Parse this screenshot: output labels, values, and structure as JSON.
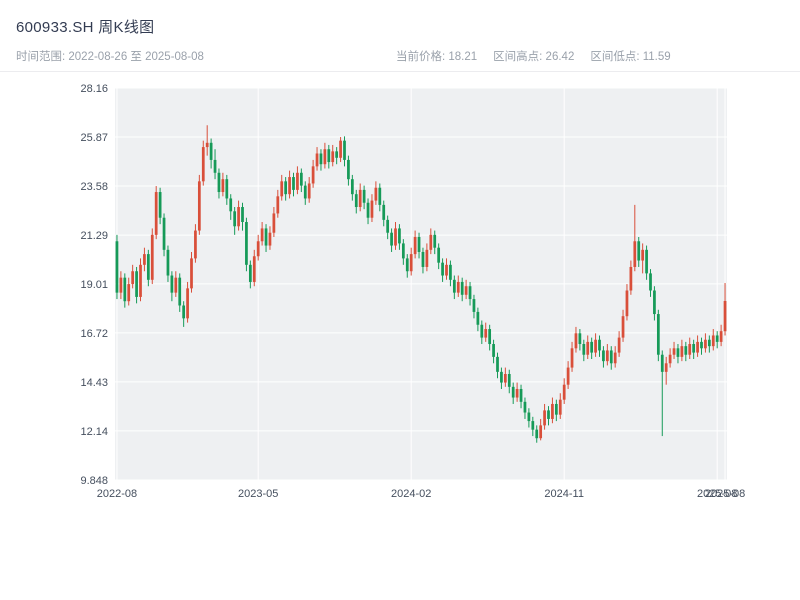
{
  "header": {
    "title": "600933.SH 周K线图",
    "time_range": "时间范围: 2022-08-26 至 2025-08-08",
    "stats": {
      "current": "当前价格: 18.21",
      "high": "区间高点: 26.42",
      "low": "区间低点: 11.59"
    }
  },
  "chart_data": {
    "type": "candlestick",
    "symbol": "600933.SH",
    "chart_title": "600933.SH 周K线图",
    "interval": "weekly",
    "start_date": "2022-08-26",
    "end_date": "2025-08-08",
    "current_price": 18.21,
    "range_high": 26.42,
    "range_low": 11.59,
    "ylim": [
      9.848,
      28.16
    ],
    "grid": true,
    "y_ticks": [
      {
        "value": 28.16,
        "label": "28.16"
      },
      {
        "value": 25.87,
        "label": "25.87"
      },
      {
        "value": 23.58,
        "label": "23.58"
      },
      {
        "value": 21.29,
        "label": "21.29"
      },
      {
        "value": 19.01,
        "label": "19.01"
      },
      {
        "value": 16.72,
        "label": "16.72"
      },
      {
        "value": 14.43,
        "label": "14.43"
      },
      {
        "value": 12.14,
        "label": "12.14"
      },
      {
        "value": 9.848,
        "label": "9.848"
      }
    ],
    "x_ticks": [
      {
        "index": 0,
        "label": "2022-08"
      },
      {
        "index": 36,
        "label": "2023-05"
      },
      {
        "index": 75,
        "label": "2024-02"
      },
      {
        "index": 114,
        "label": "2024-11"
      },
      {
        "index": 153,
        "label": "2025-08"
      },
      {
        "index": 155,
        "label": "2025-08"
      }
    ],
    "colors": {
      "up": "#d94f3a",
      "down": "#169a58",
      "plot_bg": "#eef0f2",
      "grid": "#ffffff",
      "tick_text": "#454f5e",
      "title_text": "#333c52",
      "sub_text": "#9aa1ab"
    },
    "candles": [
      [
        21.0,
        21.3,
        18.3,
        18.6
      ],
      [
        18.6,
        19.6,
        18.3,
        19.3
      ],
      [
        19.3,
        19.5,
        17.9,
        18.2
      ],
      [
        18.2,
        19.3,
        18.0,
        19.0
      ],
      [
        19.0,
        19.9,
        18.8,
        19.6
      ],
      [
        19.6,
        19.8,
        18.1,
        18.4
      ],
      [
        18.4,
        20.2,
        18.2,
        19.9
      ],
      [
        19.9,
        20.7,
        19.6,
        20.4
      ],
      [
        20.4,
        20.6,
        18.9,
        19.2
      ],
      [
        19.2,
        21.6,
        19.0,
        21.3
      ],
      [
        21.3,
        23.58,
        21.1,
        23.3
      ],
      [
        23.3,
        23.5,
        21.8,
        22.1
      ],
      [
        22.1,
        22.3,
        20.3,
        20.6
      ],
      [
        20.6,
        20.8,
        19.1,
        19.4
      ],
      [
        19.4,
        19.6,
        18.2,
        18.6
      ],
      [
        18.6,
        19.6,
        18.4,
        19.3
      ],
      [
        19.3,
        19.5,
        17.7,
        18.0
      ],
      [
        18.0,
        18.2,
        17.0,
        17.4
      ],
      [
        17.4,
        19.1,
        17.2,
        18.8
      ],
      [
        18.8,
        20.5,
        18.6,
        20.2
      ],
      [
        20.2,
        21.8,
        20.0,
        21.5
      ],
      [
        21.5,
        24.1,
        21.3,
        23.8
      ],
      [
        23.8,
        25.7,
        23.6,
        25.4
      ],
      [
        25.4,
        26.42,
        25.0,
        25.6
      ],
      [
        25.6,
        25.8,
        24.4,
        24.8
      ],
      [
        24.8,
        25.3,
        23.9,
        24.2
      ],
      [
        24.2,
        24.4,
        23.0,
        23.3
      ],
      [
        23.3,
        24.2,
        23.1,
        23.9
      ],
      [
        23.9,
        24.1,
        22.7,
        23.0
      ],
      [
        23.0,
        23.2,
        22.0,
        22.4
      ],
      [
        22.4,
        22.6,
        21.3,
        21.7
      ],
      [
        21.7,
        22.9,
        21.5,
        22.6
      ],
      [
        22.6,
        22.8,
        21.5,
        21.9
      ],
      [
        21.9,
        22.1,
        19.6,
        19.9
      ],
      [
        19.9,
        20.1,
        18.8,
        19.1
      ],
      [
        19.1,
        20.6,
        18.9,
        20.3
      ],
      [
        20.3,
        21.3,
        20.1,
        21.0
      ],
      [
        21.0,
        21.9,
        20.8,
        21.6
      ],
      [
        21.6,
        21.8,
        20.5,
        20.8
      ],
      [
        20.8,
        21.7,
        20.6,
        21.4
      ],
      [
        21.4,
        22.6,
        21.2,
        22.3
      ],
      [
        22.3,
        23.4,
        22.1,
        23.1
      ],
      [
        23.1,
        24.1,
        22.9,
        23.8
      ],
      [
        23.8,
        24.0,
        22.9,
        23.2
      ],
      [
        23.2,
        24.3,
        23.0,
        24.0
      ],
      [
        24.0,
        24.2,
        23.1,
        23.4
      ],
      [
        23.4,
        24.5,
        23.2,
        24.2
      ],
      [
        24.2,
        24.4,
        23.3,
        23.6
      ],
      [
        23.6,
        23.8,
        22.7,
        23.0
      ],
      [
        23.0,
        24.0,
        22.8,
        23.7
      ],
      [
        23.7,
        24.8,
        23.5,
        24.5
      ],
      [
        24.5,
        25.4,
        24.3,
        25.1
      ],
      [
        25.1,
        25.3,
        24.3,
        24.6
      ],
      [
        24.6,
        25.6,
        24.4,
        25.3
      ],
      [
        25.3,
        25.5,
        24.4,
        24.7
      ],
      [
        24.7,
        25.5,
        24.5,
        25.2
      ],
      [
        25.2,
        25.4,
        24.6,
        24.9
      ],
      [
        24.9,
        25.87,
        24.7,
        25.7
      ],
      [
        25.7,
        25.9,
        24.5,
        24.8
      ],
      [
        24.8,
        25.0,
        23.6,
        23.9
      ],
      [
        23.9,
        24.1,
        22.9,
        23.2
      ],
      [
        23.2,
        23.4,
        22.3,
        22.6
      ],
      [
        22.6,
        23.7,
        22.4,
        23.4
      ],
      [
        23.4,
        23.6,
        22.5,
        22.8
      ],
      [
        22.8,
        23.0,
        21.8,
        22.1
      ],
      [
        22.1,
        23.2,
        21.9,
        22.9
      ],
      [
        22.9,
        23.8,
        22.7,
        23.5
      ],
      [
        23.5,
        23.7,
        22.4,
        22.7
      ],
      [
        22.7,
        22.9,
        21.7,
        22.0
      ],
      [
        22.0,
        22.2,
        21.1,
        21.4
      ],
      [
        21.4,
        21.6,
        20.5,
        20.8
      ],
      [
        20.8,
        21.9,
        20.6,
        21.6
      ],
      [
        21.6,
        21.8,
        20.6,
        20.9
      ],
      [
        20.9,
        21.1,
        19.9,
        20.2
      ],
      [
        20.2,
        20.4,
        19.3,
        19.6
      ],
      [
        19.6,
        20.7,
        19.4,
        20.4
      ],
      [
        20.4,
        21.5,
        20.2,
        21.2
      ],
      [
        21.2,
        21.4,
        20.2,
        20.5
      ],
      [
        20.5,
        20.7,
        19.5,
        19.8
      ],
      [
        19.8,
        20.9,
        19.6,
        20.6
      ],
      [
        20.6,
        21.6,
        20.4,
        21.3
      ],
      [
        21.3,
        21.5,
        20.4,
        20.7
      ],
      [
        20.7,
        20.9,
        19.7,
        20.0
      ],
      [
        20.0,
        20.2,
        19.1,
        19.4
      ],
      [
        19.4,
        20.2,
        19.2,
        19.9
      ],
      [
        19.9,
        20.1,
        18.9,
        19.2
      ],
      [
        19.2,
        19.4,
        18.3,
        18.6
      ],
      [
        18.6,
        19.4,
        18.4,
        19.1
      ],
      [
        19.1,
        19.3,
        18.2,
        18.5
      ],
      [
        18.5,
        19.2,
        18.3,
        18.9
      ],
      [
        18.9,
        19.1,
        18.0,
        18.3
      ],
      [
        18.3,
        18.5,
        17.4,
        17.7
      ],
      [
        17.7,
        17.9,
        16.8,
        17.1
      ],
      [
        17.1,
        17.3,
        16.2,
        16.5
      ],
      [
        16.5,
        17.2,
        16.3,
        16.9
      ],
      [
        16.9,
        17.1,
        15.9,
        16.2
      ],
      [
        16.2,
        16.4,
        15.3,
        15.6
      ],
      [
        15.6,
        15.8,
        14.6,
        14.9
      ],
      [
        14.9,
        15.1,
        14.1,
        14.4
      ],
      [
        14.4,
        15.1,
        14.2,
        14.8
      ],
      [
        14.8,
        15.0,
        13.9,
        14.2
      ],
      [
        14.2,
        14.4,
        13.4,
        13.7
      ],
      [
        13.7,
        14.4,
        13.5,
        14.1
      ],
      [
        14.1,
        14.3,
        13.2,
        13.5
      ],
      [
        13.5,
        13.7,
        12.7,
        13.0
      ],
      [
        13.0,
        13.2,
        12.3,
        12.6
      ],
      [
        12.6,
        12.8,
        11.9,
        12.2
      ],
      [
        12.2,
        12.4,
        11.59,
        11.8
      ],
      [
        11.8,
        12.7,
        11.7,
        12.4
      ],
      [
        12.4,
        13.4,
        12.2,
        13.1
      ],
      [
        13.1,
        13.3,
        12.4,
        12.7
      ],
      [
        12.7,
        13.7,
        12.5,
        13.4
      ],
      [
        13.4,
        13.6,
        12.6,
        12.9
      ],
      [
        12.9,
        13.9,
        12.7,
        13.6
      ],
      [
        13.6,
        14.6,
        13.4,
        14.3
      ],
      [
        14.3,
        15.4,
        14.1,
        15.1
      ],
      [
        15.1,
        16.3,
        14.9,
        16.0
      ],
      [
        16.0,
        17.0,
        15.8,
        16.7
      ],
      [
        16.7,
        16.9,
        15.9,
        16.2
      ],
      [
        16.2,
        16.4,
        15.4,
        15.7
      ],
      [
        15.7,
        16.6,
        15.5,
        16.3
      ],
      [
        16.3,
        16.5,
        15.5,
        15.8
      ],
      [
        15.8,
        16.7,
        15.6,
        16.4
      ],
      [
        16.4,
        16.6,
        15.6,
        15.9
      ],
      [
        15.9,
        16.1,
        15.1,
        15.4
      ],
      [
        15.4,
        16.2,
        15.2,
        15.9
      ],
      [
        15.9,
        16.1,
        15.0,
        15.3
      ],
      [
        15.3,
        16.1,
        15.1,
        15.8
      ],
      [
        15.8,
        16.8,
        15.6,
        16.5
      ],
      [
        16.5,
        17.8,
        16.3,
        17.5
      ],
      [
        17.5,
        19.0,
        17.3,
        18.7
      ],
      [
        18.7,
        20.1,
        18.5,
        19.8
      ],
      [
        19.8,
        22.7,
        19.6,
        21.0
      ],
      [
        21.0,
        21.2,
        19.8,
        20.1
      ],
      [
        20.1,
        20.9,
        19.5,
        20.6
      ],
      [
        20.6,
        20.8,
        19.2,
        19.5
      ],
      [
        19.5,
        19.7,
        18.4,
        18.7
      ],
      [
        18.7,
        18.9,
        17.3,
        17.6
      ],
      [
        17.6,
        17.8,
        15.4,
        15.7
      ],
      [
        15.7,
        15.9,
        11.9,
        14.9
      ],
      [
        14.9,
        15.6,
        14.3,
        15.3
      ],
      [
        15.3,
        16.0,
        15.1,
        15.7
      ],
      [
        15.7,
        16.3,
        15.5,
        16.0
      ],
      [
        16.0,
        16.2,
        15.3,
        15.6
      ],
      [
        15.6,
        16.4,
        15.4,
        16.1
      ],
      [
        16.1,
        16.3,
        15.4,
        15.7
      ],
      [
        15.7,
        16.5,
        15.5,
        16.2
      ],
      [
        16.2,
        16.4,
        15.5,
        15.8
      ],
      [
        15.8,
        16.6,
        15.6,
        16.3
      ],
      [
        16.3,
        16.5,
        15.7,
        16.0
      ],
      [
        16.0,
        16.7,
        15.8,
        16.4
      ],
      [
        16.4,
        16.6,
        15.8,
        16.1
      ],
      [
        16.1,
        16.9,
        15.9,
        16.6
      ],
      [
        16.6,
        16.8,
        16.0,
        16.3
      ],
      [
        16.3,
        17.1,
        16.1,
        16.8
      ],
      [
        16.8,
        19.05,
        16.6,
        18.21
      ]
    ]
  }
}
